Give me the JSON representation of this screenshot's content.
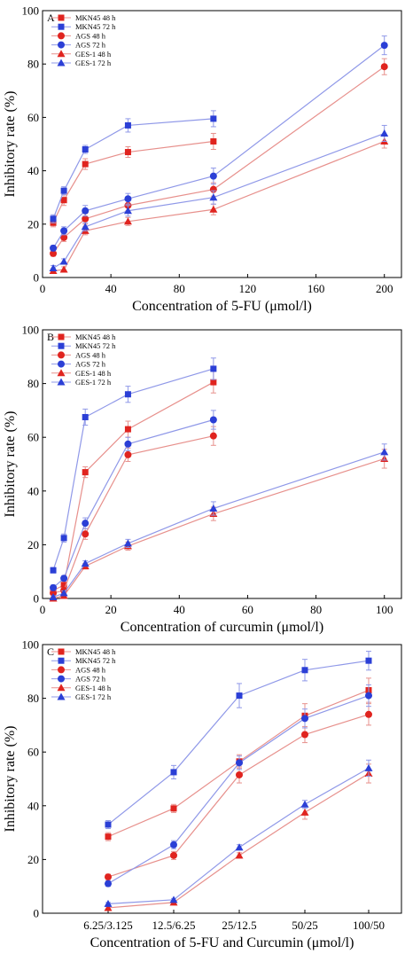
{
  "colors": {
    "red": "#e0241f",
    "blue": "#2b3fd6",
    "red_line": "#e7908c",
    "blue_line": "#8f98e8",
    "err_red": "#e7908c",
    "err_blue": "#8f98e8"
  },
  "chart_data": [
    {
      "type": "line",
      "panel": "A",
      "xlabel": "Concentration of 5-FU (μmol/l)",
      "ylabel": "Inhibitory rate (%)",
      "xlim": [
        0,
        210
      ],
      "ylim": [
        0,
        100
      ],
      "xticks": [
        0,
        40,
        80,
        120,
        160,
        200
      ],
      "yticks": [
        0,
        20,
        40,
        60,
        80,
        100
      ],
      "legend_position": "top-left",
      "series": [
        {
          "name": "MKN45 48 h",
          "marker": "square",
          "color": "red",
          "x": [
            6.25,
            12.5,
            25,
            50,
            100
          ],
          "y": [
            20.5,
            29,
            42.5,
            47,
            51
          ],
          "err": [
            1.5,
            2,
            2,
            2,
            3
          ]
        },
        {
          "name": "MKN45 72 h",
          "marker": "square",
          "color": "blue",
          "x": [
            6.25,
            12.5,
            25,
            50,
            100
          ],
          "y": [
            22,
            32.5,
            48,
            57,
            59.5
          ],
          "err": [
            1.5,
            1.5,
            1.5,
            2.5,
            3
          ]
        },
        {
          "name": "AGS 48 h",
          "marker": "circle",
          "color": "red",
          "x": [
            6.25,
            12.5,
            25,
            50,
            100,
            200
          ],
          "y": [
            9,
            15,
            22,
            27,
            33,
            79
          ],
          "err": [
            1,
            1.5,
            2,
            2,
            2.5,
            3
          ]
        },
        {
          "name": "AGS 72 h",
          "marker": "circle",
          "color": "blue",
          "x": [
            6.25,
            12.5,
            25,
            50,
            100,
            200
          ],
          "y": [
            11,
            17.5,
            25,
            29.5,
            38,
            87
          ],
          "err": [
            1,
            1.5,
            2,
            2,
            3,
            3.5
          ]
        },
        {
          "name": "GES-1 48 h",
          "marker": "triangle",
          "color": "red",
          "x": [
            6.25,
            12.5,
            25,
            50,
            100,
            200
          ],
          "y": [
            2.5,
            3,
            17.5,
            21,
            25.5,
            51
          ],
          "err": [
            0.8,
            1,
            1.5,
            1.5,
            2,
            2.5
          ]
        },
        {
          "name": "GES-1 72 h",
          "marker": "triangle",
          "color": "blue",
          "x": [
            6.25,
            12.5,
            25,
            50,
            100,
            200
          ],
          "y": [
            3.5,
            6,
            19,
            25,
            30,
            54
          ],
          "err": [
            1,
            1,
            1.5,
            2,
            2.5,
            3
          ]
        }
      ]
    },
    {
      "type": "line",
      "panel": "B",
      "xlabel": "Concentration of curcumin (μmol/l)",
      "ylabel": "Inhibitory rate (%)",
      "xlim": [
        0,
        105
      ],
      "ylim": [
        0,
        100
      ],
      "xticks": [
        0,
        20,
        40,
        60,
        80,
        100
      ],
      "yticks": [
        0,
        20,
        40,
        60,
        80,
        100
      ],
      "legend_position": "top-left",
      "series": [
        {
          "name": "MKN45 48 h",
          "marker": "square",
          "color": "red",
          "x": [
            3.125,
            6.25,
            12.5,
            25,
            50
          ],
          "y": [
            3,
            5,
            47,
            63,
            80.5
          ],
          "err": [
            1,
            1,
            2,
            3,
            4
          ]
        },
        {
          "name": "MKN45 72 h",
          "marker": "square",
          "color": "blue",
          "x": [
            3.125,
            6.25,
            12.5,
            25,
            50
          ],
          "y": [
            10.5,
            22.5,
            67.5,
            76,
            85.5
          ],
          "err": [
            1,
            1.5,
            3,
            3,
            4
          ]
        },
        {
          "name": "AGS 48 h",
          "marker": "circle",
          "color": "red",
          "x": [
            3.125,
            6.25,
            12.5,
            25,
            50
          ],
          "y": [
            2,
            3,
            24,
            53.5,
            60.5
          ],
          "err": [
            1,
            1,
            2,
            2.5,
            3.5
          ]
        },
        {
          "name": "AGS 72 h",
          "marker": "circle",
          "color": "blue",
          "x": [
            3.125,
            6.25,
            12.5,
            25,
            50
          ],
          "y": [
            4,
            7.5,
            28,
            57.5,
            66.5
          ],
          "err": [
            1,
            1,
            2,
            2.5,
            3.5
          ]
        },
        {
          "name": "GES-1 48 h",
          "marker": "triangle",
          "color": "red",
          "x": [
            3.125,
            6.25,
            12.5,
            25,
            50,
            100
          ],
          "y": [
            0,
            1,
            12,
            19.5,
            31.5,
            52
          ],
          "err": [
            0.5,
            0.8,
            1,
            1.5,
            2.5,
            3.5
          ]
        },
        {
          "name": "GES-1 72 h",
          "marker": "triangle",
          "color": "blue",
          "x": [
            3.125,
            6.25,
            12.5,
            25,
            50,
            100
          ],
          "y": [
            0.5,
            2,
            13,
            20.5,
            33.5,
            54.5
          ],
          "err": [
            0.5,
            0.8,
            1,
            1.5,
            2.5,
            3
          ]
        }
      ]
    },
    {
      "type": "line",
      "panel": "C",
      "xlabel": "Concentration of 5-FU and Curcumin (μmol/l)",
      "ylabel": "Inhibitory rate (%)",
      "categories": [
        "6.25/3.125",
        "12.5/6.25",
        "25/12.5",
        "50/25",
        "100/50"
      ],
      "ylim": [
        0,
        100
      ],
      "yticks": [
        0,
        20,
        40,
        60,
        80,
        100
      ],
      "legend_position": "top-left",
      "series": [
        {
          "name": "MKN45 48 h",
          "marker": "square",
          "color": "red",
          "y": [
            28.5,
            39,
            56.5,
            73.5,
            83
          ],
          "err": [
            1.5,
            1.5,
            2.5,
            4.5,
            4.5
          ]
        },
        {
          "name": "MKN45 72 h",
          "marker": "square",
          "color": "blue",
          "y": [
            33,
            52.5,
            81,
            90.5,
            94
          ],
          "err": [
            1.5,
            2.5,
            4.5,
            4,
            3.5
          ]
        },
        {
          "name": "AGS 48 h",
          "marker": "circle",
          "color": "red",
          "y": [
            13.5,
            21.5,
            51.5,
            66.5,
            74
          ],
          "err": [
            1,
            1.5,
            3,
            3,
            4
          ]
        },
        {
          "name": "AGS 72 h",
          "marker": "circle",
          "color": "blue",
          "y": [
            11,
            25.5,
            56,
            72.5,
            81
          ],
          "err": [
            1,
            1.5,
            2.5,
            3.5,
            4
          ]
        },
        {
          "name": "GES-1 48 h",
          "marker": "triangle",
          "color": "red",
          "y": [
            2,
            4,
            21.5,
            37.5,
            52
          ],
          "err": [
            0.5,
            0.5,
            1,
            2.5,
            3.5
          ]
        },
        {
          "name": "GES-1 72 h",
          "marker": "triangle",
          "color": "blue",
          "y": [
            3.5,
            5,
            24.5,
            40.5,
            54
          ],
          "err": [
            0.5,
            0.5,
            1,
            1.5,
            3
          ]
        }
      ]
    }
  ]
}
